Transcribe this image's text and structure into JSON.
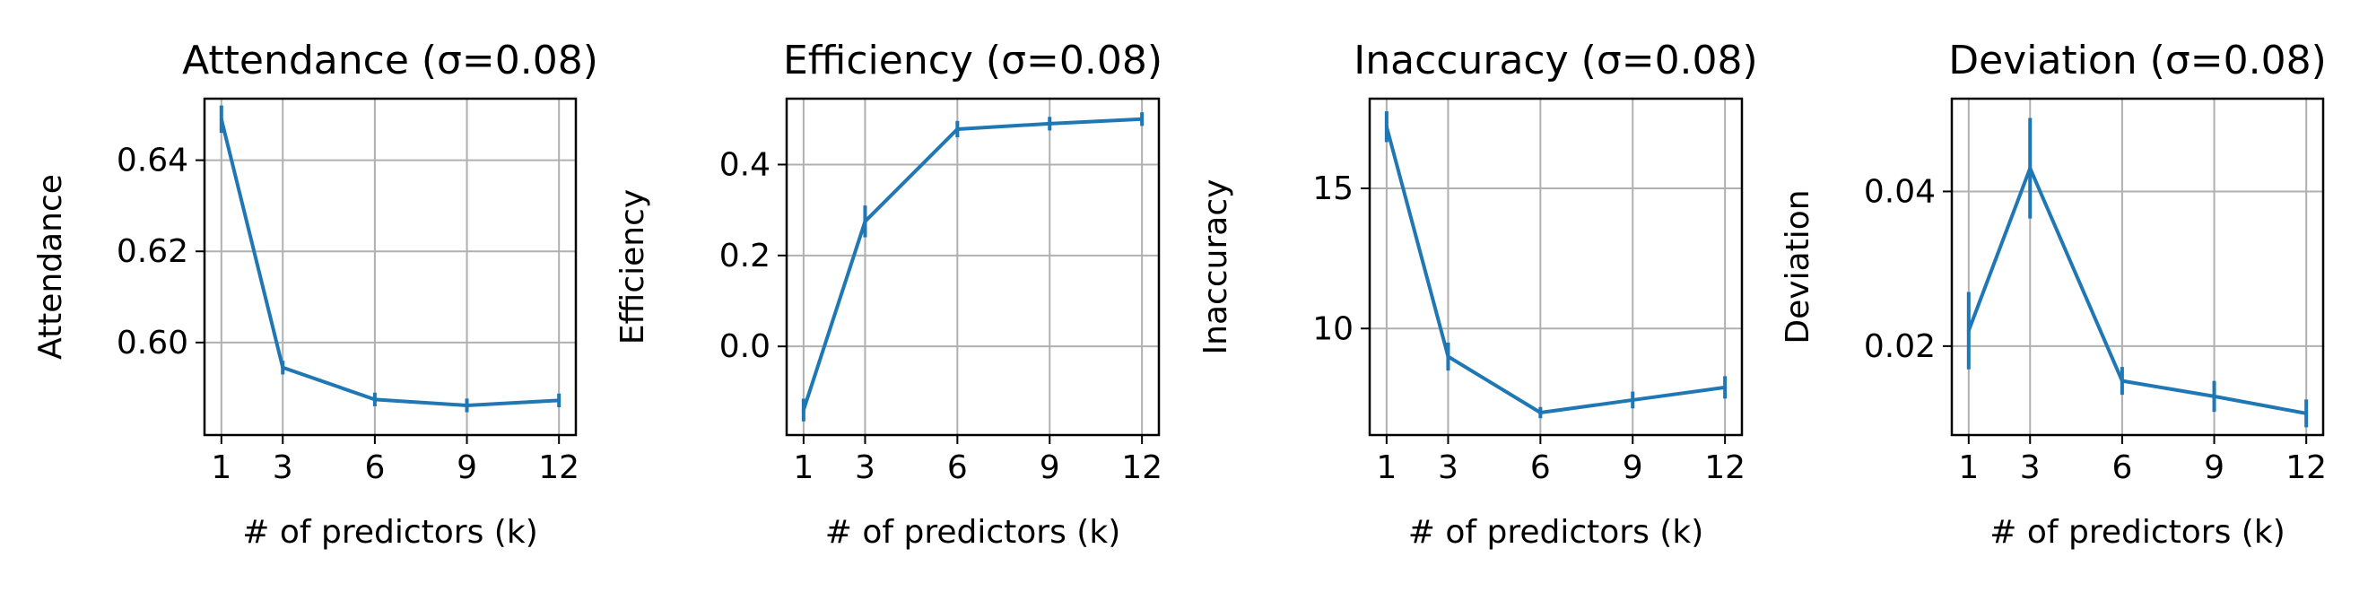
{
  "chart_data": [
    {
      "type": "line",
      "title": "Attendance (σ=0.08)",
      "xlabel": "# of predictors (k)",
      "ylabel": "Attendance",
      "x": [
        1,
        3,
        6,
        9,
        12
      ],
      "xticks": [
        1,
        3,
        6,
        9,
        12
      ],
      "xlim": [
        0.45,
        12.55
      ],
      "yticks": [
        0.6,
        0.62,
        0.64
      ],
      "ytick_labels": [
        "0.60",
        "0.62",
        "0.64"
      ],
      "ylim": [
        0.5797,
        0.6535
      ],
      "grid": true,
      "series": [
        {
          "values": [
            0.649,
            0.5945,
            0.5875,
            0.5862,
            0.5873
          ],
          "errors": [
            0.003,
            0.0015,
            0.0015,
            0.0015,
            0.0015
          ],
          "color": "#1f77b4"
        }
      ]
    },
    {
      "type": "line",
      "title": "Efficiency (σ=0.08)",
      "xlabel": "# of predictors (k)",
      "ylabel": "Efficiency",
      "x": [
        1,
        3,
        6,
        9,
        12
      ],
      "xticks": [
        1,
        3,
        6,
        9,
        12
      ],
      "xlim": [
        0.45,
        12.55
      ],
      "yticks": [
        0.0,
        0.2,
        0.4
      ],
      "ytick_labels": [
        "0.0",
        "0.2",
        "0.4"
      ],
      "ylim": [
        -0.195,
        0.545
      ],
      "grid": true,
      "series": [
        {
          "values": [
            -0.14,
            0.275,
            0.478,
            0.49,
            0.5
          ],
          "errors": [
            0.025,
            0.035,
            0.018,
            0.015,
            0.015
          ],
          "color": "#1f77b4"
        }
      ]
    },
    {
      "type": "line",
      "title": "Inaccuracy (σ=0.08)",
      "xlabel": "# of predictors (k)",
      "ylabel": "Inaccuracy",
      "x": [
        1,
        3,
        6,
        9,
        12
      ],
      "xticks": [
        1,
        3,
        6,
        9,
        12
      ],
      "xlim": [
        0.45,
        12.55
      ],
      "yticks": [
        10,
        15
      ],
      "ytick_labels": [
        "10",
        "15"
      ],
      "ylim": [
        6.2,
        18.2
      ],
      "grid": true,
      "series": [
        {
          "values": [
            17.2,
            9.0,
            7.0,
            7.45,
            7.9
          ],
          "errors": [
            0.55,
            0.5,
            0.2,
            0.3,
            0.4
          ],
          "color": "#1f77b4"
        }
      ]
    },
    {
      "type": "line",
      "title": "Deviation (σ=0.08)",
      "xlabel": "# of predictors (k)",
      "ylabel": "Deviation",
      "x": [
        1,
        3,
        6,
        9,
        12
      ],
      "xticks": [
        1,
        3,
        6,
        9,
        12
      ],
      "xlim": [
        0.45,
        12.55
      ],
      "yticks": [
        0.02,
        0.04
      ],
      "ytick_labels": [
        "0.02",
        "0.04"
      ],
      "ylim": [
        0.0085,
        0.052
      ],
      "grid": true,
      "series": [
        {
          "values": [
            0.022,
            0.043,
            0.0155,
            0.0135,
            0.0113
          ],
          "errors": [
            0.005,
            0.0065,
            0.0018,
            0.002,
            0.0018
          ],
          "color": "#1f77b4"
        }
      ]
    }
  ]
}
